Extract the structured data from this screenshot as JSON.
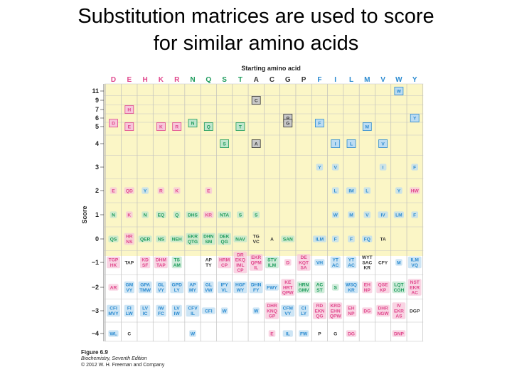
{
  "slide": {
    "title_line1": "Substitution matrices are used to score",
    "title_line2": "for similar amino acids"
  },
  "figure": {
    "header": "Starting amino acid",
    "y_axis_label": "Score",
    "columns": [
      "D",
      "E",
      "H",
      "K",
      "R",
      "N",
      "Q",
      "S",
      "T",
      "A",
      "C",
      "G",
      "P",
      "F",
      "I",
      "L",
      "M",
      "V",
      "W",
      "Y"
    ],
    "rows": [
      "11",
      "9",
      "7",
      "6",
      "5",
      "4",
      "3",
      "2",
      "1",
      "0",
      "−1",
      "−2",
      "−3",
      "−4"
    ],
    "colors": {
      "shade": "#fbf6c6",
      "pink": "#e0468c",
      "pink_fill": "#f7c6da",
      "green": "#1a9a5a",
      "green_fill": "#bfe6cd",
      "blue": "#2a8ad0",
      "blue_fill": "#bcdcf2",
      "dark": "#333333",
      "grey_fill": "#c8c8c8"
    },
    "cells": [
      {
        "c": 19,
        "r": 0,
        "t": "W",
        "k": "b",
        "box": 1
      },
      {
        "c": 10,
        "r": 1,
        "t": "C",
        "k": "d",
        "box": 1
      },
      {
        "c": 2,
        "r": 2,
        "t": "H",
        "k": "p",
        "box": 1
      },
      {
        "c": 12,
        "r": 3,
        "t": "P",
        "k": "d",
        "box": 1
      },
      {
        "c": 20,
        "r": 3,
        "t": "Y",
        "k": "b",
        "box": 1
      },
      {
        "c": 1,
        "r": 3.6,
        "t": "D",
        "k": "p",
        "box": 1
      },
      {
        "c": 2,
        "r": 4,
        "t": "E",
        "k": "p",
        "box": 1
      },
      {
        "c": 4,
        "r": 4,
        "t": "K",
        "k": "p",
        "box": 1
      },
      {
        "c": 5,
        "r": 4,
        "t": "R",
        "k": "p",
        "box": 1
      },
      {
        "c": 6,
        "r": 3.6,
        "t": "N",
        "k": "g",
        "box": 1
      },
      {
        "c": 7,
        "r": 4,
        "t": "Q",
        "k": "g",
        "box": 1
      },
      {
        "c": 9,
        "r": 4,
        "t": "T",
        "k": "g",
        "box": 1
      },
      {
        "c": 12,
        "r": 3.6,
        "t": "G",
        "k": "d",
        "box": 1
      },
      {
        "c": 14,
        "r": 3.6,
        "t": "F",
        "k": "b",
        "box": 1
      },
      {
        "c": 17,
        "r": 4,
        "t": "M",
        "k": "b",
        "box": 1
      },
      {
        "c": 8,
        "r": 5,
        "t": "S",
        "k": "g",
        "box": 1
      },
      {
        "c": 10,
        "r": 5,
        "t": "A",
        "k": "d",
        "box": 1
      },
      {
        "c": 15,
        "r": 5,
        "t": "I",
        "k": "b",
        "box": 1
      },
      {
        "c": 16,
        "r": 5,
        "t": "L",
        "k": "b",
        "box": 1
      },
      {
        "c": 18,
        "r": 5,
        "t": "V",
        "k": "b",
        "box": 1
      },
      {
        "c": 14,
        "r": 6,
        "t": "Y",
        "k": "b"
      },
      {
        "c": 15,
        "r": 6,
        "t": "V",
        "k": "b"
      },
      {
        "c": 18,
        "r": 6,
        "t": "I",
        "k": "b"
      },
      {
        "c": 20,
        "r": 6,
        "t": "F",
        "k": "b"
      },
      {
        "c": 1,
        "r": 7,
        "t": "E",
        "k": "p"
      },
      {
        "c": 2,
        "r": 7,
        "t": "QD",
        "k": "p"
      },
      {
        "c": 3,
        "r": 7,
        "t": "Y",
        "k": "b"
      },
      {
        "c": 4,
        "r": 7,
        "t": "R",
        "k": "p"
      },
      {
        "c": 5,
        "r": 7,
        "t": "K",
        "k": "p"
      },
      {
        "c": 7,
        "r": 7,
        "t": "E",
        "k": "p"
      },
      {
        "c": 15,
        "r": 7,
        "t": "L",
        "k": "b"
      },
      {
        "c": 16,
        "r": 7,
        "t": "IM",
        "k": "b"
      },
      {
        "c": 17,
        "r": 7,
        "t": "L",
        "k": "b"
      },
      {
        "c": 19,
        "r": 7,
        "t": "Y",
        "k": "b"
      },
      {
        "c": 20,
        "r": 7,
        "t": "HW",
        "k": "p"
      },
      {
        "c": 1,
        "r": 8,
        "t": "N",
        "k": "g"
      },
      {
        "c": 2,
        "r": 8,
        "t": "K",
        "k": "p"
      },
      {
        "c": 3,
        "r": 8,
        "t": "N",
        "k": "g"
      },
      {
        "c": 4,
        "r": 8,
        "t": "EQ",
        "k": "g"
      },
      {
        "c": 5,
        "r": 8,
        "t": "Q",
        "k": "g"
      },
      {
        "c": 6,
        "r": 8,
        "t": "DHS",
        "k": "g"
      },
      {
        "c": 7,
        "r": 8,
        "t": "KR",
        "k": "p"
      },
      {
        "c": 8,
        "r": 8,
        "t": "NTA",
        "k": "g"
      },
      {
        "c": 9,
        "r": 8,
        "t": "S",
        "k": "g"
      },
      {
        "c": 10,
        "r": 8,
        "t": "S",
        "k": "g"
      },
      {
        "c": 15,
        "r": 8,
        "t": "W",
        "k": "b"
      },
      {
        "c": 16,
        "r": 8,
        "t": "M",
        "k": "b"
      },
      {
        "c": 17,
        "r": 8,
        "t": "V",
        "k": "b"
      },
      {
        "c": 18,
        "r": 8,
        "t": "IV",
        "k": "b"
      },
      {
        "c": 19,
        "r": 8,
        "t": "LM",
        "k": "b"
      },
      {
        "c": 20,
        "r": 8,
        "t": "F",
        "k": "b"
      },
      {
        "c": 1,
        "r": 9,
        "t": "QS",
        "k": "g"
      },
      {
        "c": 2,
        "r": 9,
        "t": "HR\nNS",
        "k": "p"
      },
      {
        "c": 3,
        "r": 9,
        "t": "QER",
        "k": "g"
      },
      {
        "c": 4,
        "r": 9,
        "t": "NS",
        "k": "g"
      },
      {
        "c": 5,
        "r": 9,
        "t": "NEH",
        "k": "g"
      },
      {
        "c": 6,
        "r": 9,
        "t": "EKR\nQTG",
        "k": "g"
      },
      {
        "c": 7,
        "r": 9,
        "t": "DHN\nSM",
        "k": "g"
      },
      {
        "c": 8,
        "r": 9,
        "t": "DEK\nQG",
        "k": "g"
      },
      {
        "c": 9,
        "r": 9,
        "t": "NAV",
        "k": "g"
      },
      {
        "c": 10,
        "r": 9,
        "t": "TG\nVC",
        "k": "d"
      },
      {
        "c": 11,
        "r": 9,
        "t": "A",
        "k": "d"
      },
      {
        "c": 12,
        "r": 9,
        "t": "SAN",
        "k": "g"
      },
      {
        "c": 14,
        "r": 9,
        "t": "ILM",
        "k": "b"
      },
      {
        "c": 15,
        "r": 9,
        "t": "F",
        "k": "b"
      },
      {
        "c": 16,
        "r": 9,
        "t": "F",
        "k": "b"
      },
      {
        "c": 17,
        "r": 9,
        "t": "FQ",
        "k": "b"
      },
      {
        "c": 18,
        "r": 9,
        "t": "TA",
        "k": "d"
      },
      {
        "c": 1,
        "r": 10,
        "t": "TGP\nHK",
        "k": "p"
      },
      {
        "c": 2,
        "r": 10,
        "t": "TAP",
        "k": "d"
      },
      {
        "c": 3,
        "r": 10,
        "t": "KD\nSF",
        "k": "p"
      },
      {
        "c": 4,
        "r": 10,
        "t": "DHM\nTAP",
        "k": "p"
      },
      {
        "c": 5,
        "r": 10,
        "t": "TS\nAM",
        "k": "g"
      },
      {
        "c": 7,
        "r": 10,
        "t": "AP\nTY",
        "k": "d"
      },
      {
        "c": 8,
        "r": 10,
        "t": "HRM\nCP",
        "k": "p"
      },
      {
        "c": 9,
        "r": 10,
        "t": "DR\nEKQ\nIML\nCP",
        "k": "p"
      },
      {
        "c": 10,
        "r": 10,
        "t": "EKR\nQPM\nIL",
        "k": "p"
      },
      {
        "c": 11,
        "r": 10,
        "t": "STV\nILM",
        "k": "g"
      },
      {
        "c": 12,
        "r": 10,
        "t": "D",
        "k": "p"
      },
      {
        "c": 13,
        "r": 10,
        "t": "DE\nKQT\nSA",
        "k": "p"
      },
      {
        "c": 14,
        "r": 10,
        "t": "VH",
        "k": "b"
      },
      {
        "c": 15,
        "r": 10,
        "t": "YT\nAC",
        "k": "b"
      },
      {
        "c": 16,
        "r": 10,
        "t": "YT\nAC",
        "k": "b"
      },
      {
        "c": 17,
        "r": 10,
        "t": "WYT\nSAC\nKR",
        "k": "d"
      },
      {
        "c": 18,
        "r": 10,
        "t": "CFY",
        "k": "d"
      },
      {
        "c": 19,
        "r": 10,
        "t": "M",
        "k": "b"
      },
      {
        "c": 20,
        "r": 10,
        "t": "ILM\nVQ",
        "k": "b"
      },
      {
        "c": 1,
        "r": 11,
        "t": "AR",
        "k": "p"
      },
      {
        "c": 2,
        "r": 11,
        "t": "GM\nVY",
        "k": "b"
      },
      {
        "c": 3,
        "r": 11,
        "t": "GPA\nTMW",
        "k": "b"
      },
      {
        "c": 4,
        "r": 11,
        "t": "GL\nVY",
        "k": "b"
      },
      {
        "c": 5,
        "r": 11,
        "t": "GPD\nLY",
        "k": "b"
      },
      {
        "c": 6,
        "r": 11,
        "t": "AP\nMY",
        "k": "b"
      },
      {
        "c": 7,
        "r": 11,
        "t": "GL\nVW",
        "k": "b"
      },
      {
        "c": 8,
        "r": 11,
        "t": "IFY\nVL",
        "k": "b"
      },
      {
        "c": 9,
        "r": 11,
        "t": "HGF\nWY",
        "k": "b"
      },
      {
        "c": 10,
        "r": 11,
        "t": "DHN\nFY",
        "k": "b"
      },
      {
        "c": 11,
        "r": 11,
        "t": "FWY",
        "k": "b"
      },
      {
        "c": 12,
        "r": 11,
        "t": "KE\nHRT\nQPW",
        "k": "p"
      },
      {
        "c": 13,
        "r": 11,
        "t": "HRN\nGMV",
        "k": "g"
      },
      {
        "c": 14,
        "r": 11,
        "t": "AC\nST",
        "k": "g"
      },
      {
        "c": 15,
        "r": 11,
        "t": "S",
        "k": "g"
      },
      {
        "c": 16,
        "r": 11,
        "t": "WSQ\nKR",
        "k": "b"
      },
      {
        "c": 17,
        "r": 11,
        "t": "EH\nNP",
        "k": "p"
      },
      {
        "c": 18,
        "r": 11,
        "t": "QSE\nKP",
        "k": "p"
      },
      {
        "c": 19,
        "r": 11,
        "t": "LQT\nCGH",
        "k": "g"
      },
      {
        "c": 20,
        "r": 11,
        "t": "NST\nEKR\nAC",
        "k": "p"
      },
      {
        "c": 1,
        "r": 12,
        "t": "CFI\nMVY",
        "k": "b"
      },
      {
        "c": 2,
        "r": 12,
        "t": "FI\nLW",
        "k": "b"
      },
      {
        "c": 3,
        "r": 12,
        "t": "LV\nIC",
        "k": "b"
      },
      {
        "c": 4,
        "r": 12,
        "t": "IW\nFC",
        "k": "b"
      },
      {
        "c": 5,
        "r": 12,
        "t": "LV\nIW",
        "k": "b"
      },
      {
        "c": 6,
        "r": 12,
        "t": "CFV\nIL",
        "k": "b"
      },
      {
        "c": 7,
        "r": 12,
        "t": "CFI",
        "k": "b"
      },
      {
        "c": 8,
        "r": 12,
        "t": "W",
        "k": "b"
      },
      {
        "c": 10,
        "r": 12,
        "t": "W",
        "k": "b"
      },
      {
        "c": 11,
        "r": 12,
        "t": "DHR\nKNQ\nGP",
        "k": "p"
      },
      {
        "c": 12,
        "r": 12,
        "t": "CFM\nVY",
        "k": "b"
      },
      {
        "c": 13,
        "r": 12,
        "t": "CI\nLY",
        "k": "b"
      },
      {
        "c": 14,
        "r": 12,
        "t": "RD\nEKN\nQG",
        "k": "p"
      },
      {
        "c": 15,
        "r": 12,
        "t": "KRD\nEHN\nQPW",
        "k": "p"
      },
      {
        "c": 16,
        "r": 12,
        "t": "EH\nNP",
        "k": "p"
      },
      {
        "c": 17,
        "r": 12,
        "t": "DG",
        "k": "p"
      },
      {
        "c": 18,
        "r": 12,
        "t": "DHR\nNGW",
        "k": "p"
      },
      {
        "c": 19,
        "r": 12,
        "t": "IV\nEKR\nAS",
        "k": "p"
      },
      {
        "c": 20,
        "r": 12,
        "t": "DGP",
        "k": "d"
      },
      {
        "c": 1,
        "r": 13,
        "t": "WL",
        "k": "b"
      },
      {
        "c": 2,
        "r": 13,
        "t": "C",
        "k": "d"
      },
      {
        "c": 6,
        "r": 13,
        "t": "W",
        "k": "b"
      },
      {
        "c": 11,
        "r": 13,
        "t": "E",
        "k": "p"
      },
      {
        "c": 12,
        "r": 13,
        "t": "IL",
        "k": "b"
      },
      {
        "c": 13,
        "r": 13,
        "t": "FW",
        "k": "b"
      },
      {
        "c": 14,
        "r": 13,
        "t": "P",
        "k": "d"
      },
      {
        "c": 15,
        "r": 13,
        "t": "G",
        "k": "d"
      },
      {
        "c": 16,
        "r": 13,
        "t": "DG",
        "k": "p"
      },
      {
        "c": 19,
        "r": 13,
        "t": "DNP",
        "k": "p"
      }
    ],
    "caption": {
      "figure_number": "Figure 6.9",
      "book": "Biochemistry, Seventh Edition",
      "copyright": "© 2012 W. H. Freeman and Company"
    }
  }
}
